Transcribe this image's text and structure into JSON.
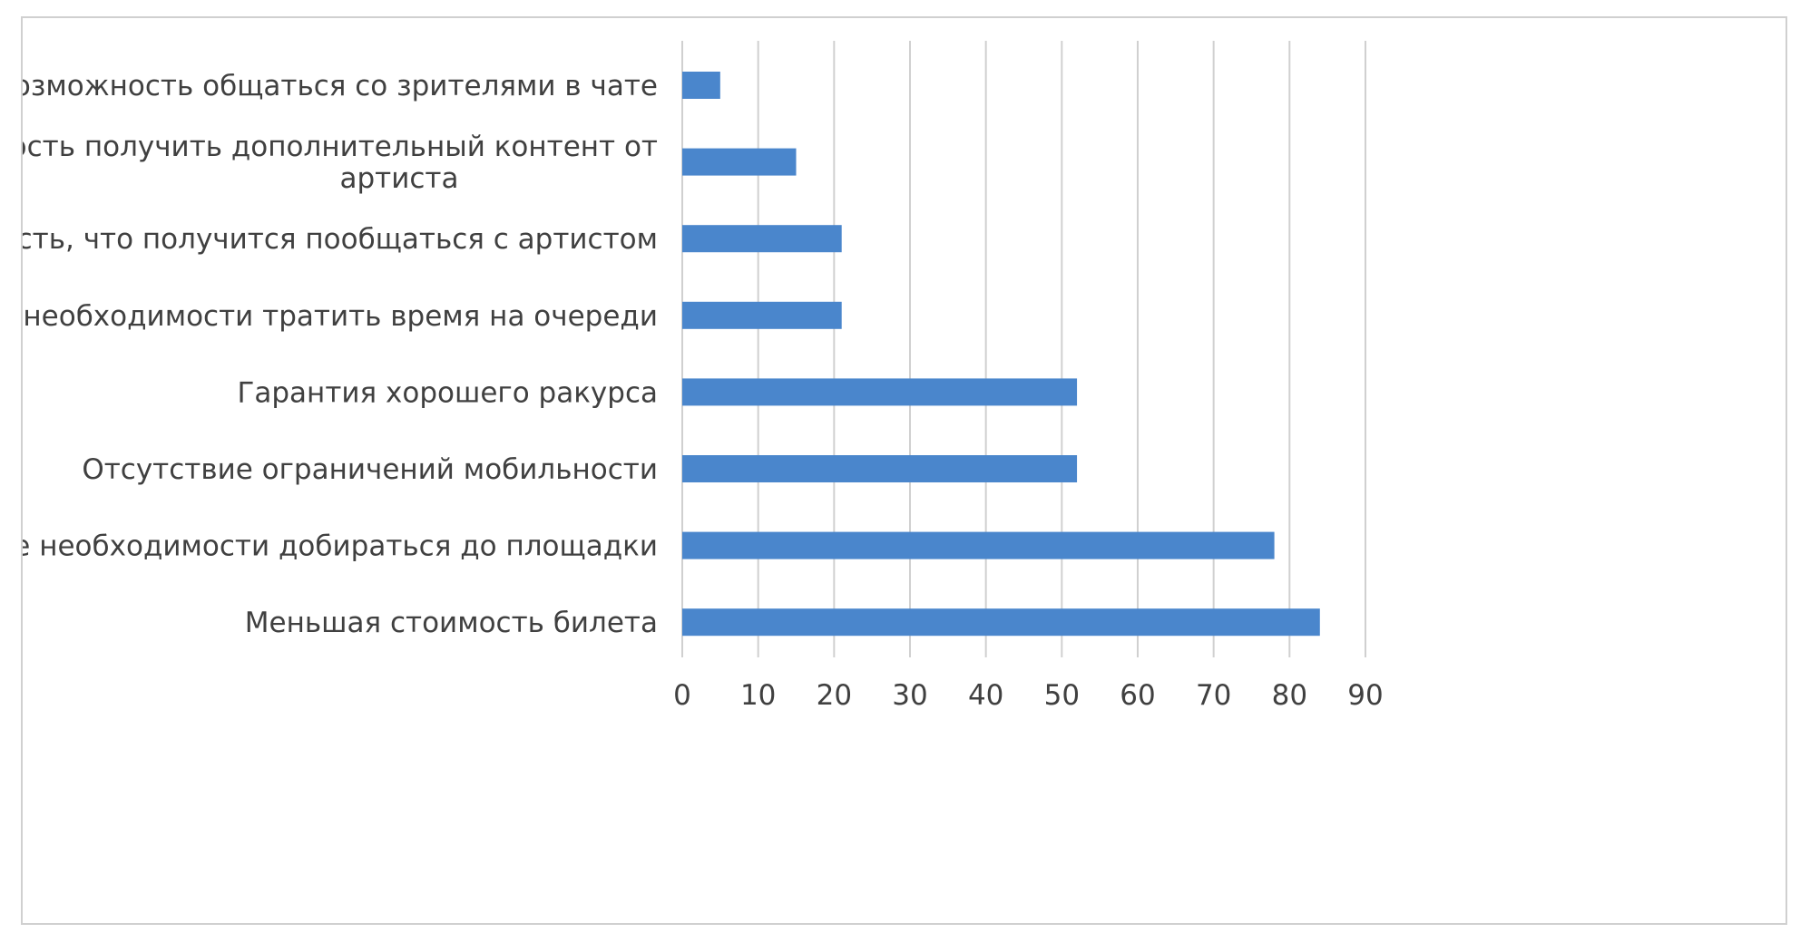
{
  "chart_data": {
    "type": "bar",
    "orientation": "horizontal",
    "categories": [
      [
        "Возможность общаться со зрителями в чате"
      ],
      [
        "Возможность получить дополнительный контент от",
        "артиста"
      ],
      [
        "Вероятность, что получится пообщаться с артистом"
      ],
      [
        "Отсутствие необходимости тратить время на очереди"
      ],
      [
        "Гарантия хорошего ракурса"
      ],
      [
        "Отсутствие ограничений мобильности"
      ],
      [
        "Отсутствие необходимости добираться до площадки"
      ],
      [
        "Меньшая стоимость билета"
      ]
    ],
    "values": [
      5,
      15,
      21,
      21,
      52,
      52,
      78,
      84
    ],
    "xlim": [
      0,
      90
    ],
    "xticks": [
      0,
      10,
      20,
      30,
      40,
      50,
      60,
      70,
      80,
      90
    ],
    "grid": true,
    "bar_color": "#4a86cc",
    "gridline_color": "#d0d0d0",
    "text_color": "#404040"
  }
}
